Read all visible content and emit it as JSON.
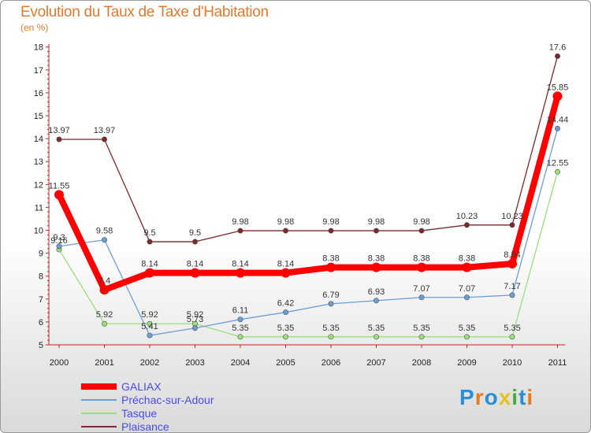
{
  "chart_data": {
    "type": "line",
    "title": "Evolution du Taux de Taxe d'Habitation",
    "subtitle": "(en %)",
    "x": [
      "2000",
      "2001",
      "2002",
      "2003",
      "2004",
      "2005",
      "2006",
      "2007",
      "2008",
      "2009",
      "2010",
      "2011"
    ],
    "ylim": [
      5,
      18
    ],
    "yticks": [
      5,
      6,
      7,
      8,
      9,
      10,
      11,
      12,
      13,
      14,
      15,
      16,
      17,
      18
    ],
    "grid": false,
    "legend_position": "bottom-left",
    "series": [
      {
        "name": "GALIAX",
        "color": "#ff0000",
        "values": [
          11.55,
          7.4,
          8.14,
          8.14,
          8.14,
          8.14,
          8.38,
          8.38,
          8.38,
          8.38,
          8.54,
          15.85
        ],
        "labels": [
          "11.55",
          "7.4",
          "8.14",
          "8.14",
          "8.14",
          "8.14",
          "8.38",
          "8.38",
          "8.38",
          "8.38",
          "8.54",
          "15.85"
        ]
      },
      {
        "name": "Préchac-sur-Adour",
        "color": "#6b9fd4",
        "values": [
          9.3,
          9.58,
          5.41,
          5.73,
          6.11,
          6.42,
          6.79,
          6.93,
          7.07,
          7.07,
          7.17,
          14.44
        ],
        "labels": [
          "9.3",
          "9.58",
          "5.41",
          "5.73",
          "6.11",
          "6.42",
          "6.79",
          "6.93",
          "7.07",
          "7.07",
          "7.17",
          "14.44"
        ]
      },
      {
        "name": "Tasque",
        "color": "#9adf7a",
        "values": [
          9.16,
          5.92,
          5.92,
          5.92,
          5.35,
          5.35,
          5.35,
          5.35,
          5.35,
          5.35,
          5.35,
          12.55
        ],
        "labels": [
          "9.16",
          "5.92",
          "5.92",
          "5.92",
          "5.35",
          "5.35",
          "5.35",
          "5.35",
          "5.35",
          "5.35",
          "5.35",
          "12.55"
        ]
      },
      {
        "name": "Plaisance",
        "color": "#7a2a2a",
        "values": [
          13.97,
          13.97,
          9.5,
          9.5,
          9.98,
          9.98,
          9.98,
          9.98,
          9.98,
          10.23,
          10.23,
          17.6
        ],
        "labels": [
          "13.97",
          "13.97",
          "9.5",
          "9.5",
          "9.98",
          "9.98",
          "9.98",
          "9.98",
          "9.98",
          "10.23",
          "10.23",
          "17.6"
        ]
      }
    ]
  },
  "logo": {
    "letters": [
      "P",
      "r",
      "o",
      "x",
      "i",
      "t",
      "i"
    ],
    "colors": [
      "#2a8fd6",
      "#e87a1e",
      "#2a8fd6",
      "#e8c21e",
      "#4aaa3a",
      "#2a8fd6",
      "#e87a1e"
    ]
  }
}
